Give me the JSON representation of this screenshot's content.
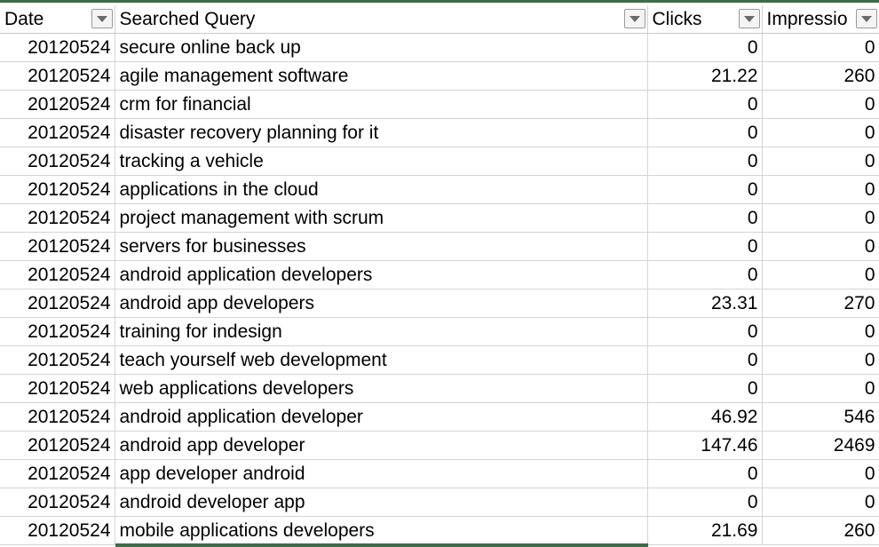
{
  "columns": [
    "Date",
    "Searched Query",
    "Clicks",
    "Impressio"
  ],
  "rows": [
    [
      "20120524",
      "secure online back up",
      "0",
      "0"
    ],
    [
      "20120524",
      "agile management software",
      "21.22",
      "260"
    ],
    [
      "20120524",
      "crm for financial",
      "0",
      "0"
    ],
    [
      "20120524",
      "disaster recovery planning for it",
      "0",
      "0"
    ],
    [
      "20120524",
      "tracking a vehicle",
      "0",
      "0"
    ],
    [
      "20120524",
      "applications in the cloud",
      "0",
      "0"
    ],
    [
      "20120524",
      "project management with scrum",
      "0",
      "0"
    ],
    [
      "20120524",
      "servers for businesses",
      "0",
      "0"
    ],
    [
      "20120524",
      "android application developers",
      "0",
      "0"
    ],
    [
      "20120524",
      "android app developers",
      "23.31",
      "270"
    ],
    [
      "20120524",
      "training for indesign",
      "0",
      "0"
    ],
    [
      "20120524",
      "teach yourself web development",
      "0",
      "0"
    ],
    [
      "20120524",
      "web applications developers",
      "0",
      "0"
    ],
    [
      "20120524",
      "android application developer",
      "46.92",
      "546"
    ],
    [
      "20120524",
      "android app developer",
      "147.46",
      "2469"
    ],
    [
      "20120524",
      "app developer android",
      "0",
      "0"
    ],
    [
      "20120524",
      "android developer app",
      "0",
      "0"
    ],
    [
      "20120524",
      "mobile applications developers",
      "21.69",
      "260"
    ]
  ]
}
